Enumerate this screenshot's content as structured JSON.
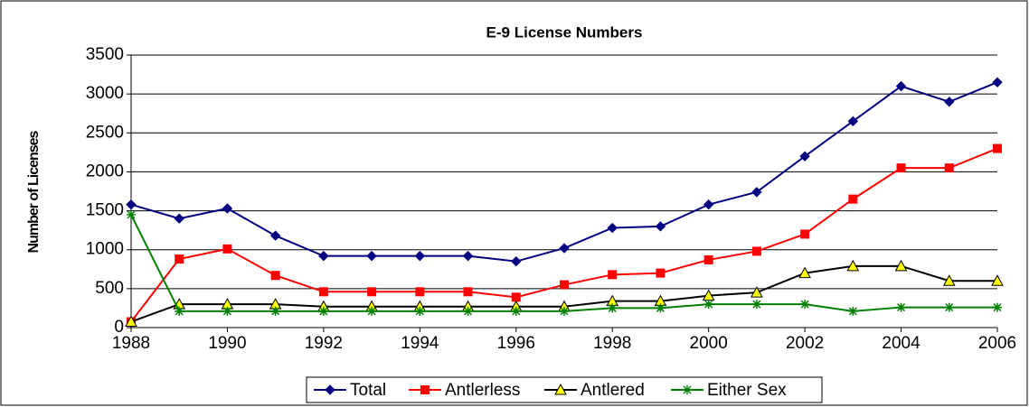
{
  "chart_data": {
    "type": "line",
    "title": "E-9 License Numbers",
    "y_label": "Number of Licenses",
    "x": [
      1988,
      1989,
      1990,
      1991,
      1992,
      1993,
      1994,
      1995,
      1996,
      1997,
      1998,
      1999,
      2000,
      2001,
      2002,
      2003,
      2004,
      2005,
      2006
    ],
    "series": [
      {
        "name": "Total",
        "color": "#000080",
        "marker": "diamond",
        "marker_color": "#000080",
        "values": [
          1580,
          1400,
          1530,
          1180,
          920,
          920,
          920,
          920,
          850,
          1020,
          1280,
          1300,
          1580,
          1740,
          2200,
          2650,
          3100,
          2900,
          3150
        ]
      },
      {
        "name": "Antlerless",
        "color": "#ff0000",
        "marker": "square",
        "marker_color": "#ff0000",
        "values": [
          75,
          880,
          1010,
          670,
          460,
          460,
          460,
          460,
          390,
          550,
          680,
          700,
          870,
          980,
          1200,
          1650,
          2050,
          2050,
          2300
        ]
      },
      {
        "name": "Antlered",
        "color": "#000000",
        "marker": "triangle",
        "marker_color": "#ffff00",
        "values": [
          75,
          300,
          300,
          300,
          270,
          270,
          270,
          270,
          270,
          270,
          340,
          340,
          410,
          450,
          700,
          790,
          790,
          600,
          600
        ]
      },
      {
        "name": "Either Sex",
        "color": "#008000",
        "marker": "star",
        "marker_color": "#008000",
        "values": [
          1450,
          210,
          210,
          210,
          210,
          210,
          210,
          210,
          210,
          210,
          250,
          250,
          300,
          300,
          300,
          210,
          260,
          260,
          260
        ]
      }
    ],
    "xlim": [
      1988,
      2006
    ],
    "xticks": [
      1988,
      1990,
      1992,
      1994,
      1996,
      1998,
      2000,
      2002,
      2004,
      2006
    ],
    "ylim": [
      0,
      3500
    ],
    "yticks": [
      0,
      500,
      1000,
      1500,
      2000,
      2500,
      3000,
      3500
    ],
    "grid": true,
    "legend": "bottom"
  }
}
